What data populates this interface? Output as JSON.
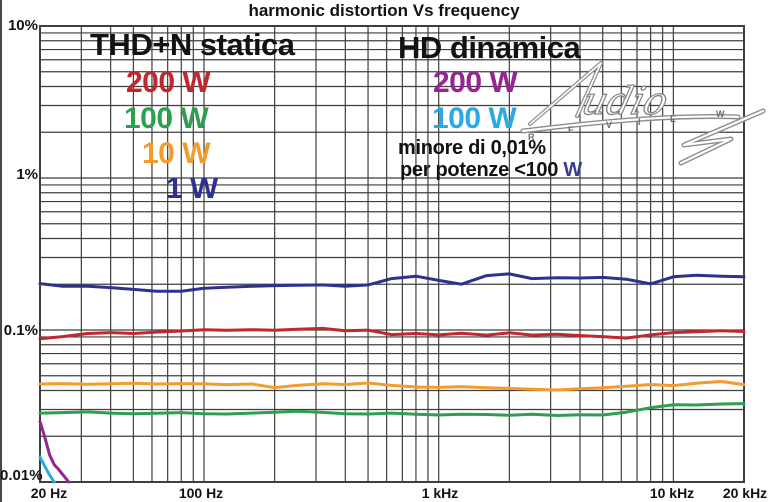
{
  "title": "harmonic distortion Vs frequency",
  "legend_left": {
    "title": "THD+N statica",
    "entries": [
      {
        "label": "200 W",
        "color": "#c1272d"
      },
      {
        "label": "100 W",
        "color": "#2f9e50"
      },
      {
        "label": "10 W",
        "color": "#f39c2c"
      },
      {
        "label": "1 W",
        "color": "#2e3192"
      }
    ]
  },
  "legend_right": {
    "title": "HD dinamica",
    "entries": [
      {
        "label": "200 W",
        "color": "#93278f"
      },
      {
        "label": "100 W",
        "color": "#29abe2"
      }
    ],
    "note_line1": "minore di 0,01%",
    "note_line2_text": "per potenze <100",
    "note_line2_suffix": "W",
    "note_suffix_color": "#3b3a9a",
    "note_color": "#121212"
  },
  "logo": {
    "word": "udio",
    "sub_letters": [
      "R",
      "E",
      "V",
      "I",
      "E",
      "W"
    ]
  },
  "chart_data": {
    "type": "line",
    "title": "harmonic distortion Vs frequency",
    "xlabel": "",
    "ylabel": "",
    "x_unit": "Hz",
    "y_unit": "%",
    "x_scale": "log",
    "y_scale": "log",
    "xlim": [
      20,
      20000
    ],
    "ylim": [
      0.01,
      10
    ],
    "grid": "log major+minor, dark gray, on",
    "legend_position": "inside-top",
    "grid_color": "#3f3f3f",
    "x_ticks": [
      {
        "label": "20 Hz",
        "hz": 20
      },
      {
        "label": "100 Hz",
        "hz": 100
      },
      {
        "label": "1 kHz",
        "hz": 1000
      },
      {
        "label": "10 kHz",
        "hz": 10000
      },
      {
        "label": "20 kHz",
        "hz": 20000
      }
    ],
    "y_ticks": [
      {
        "label": "10%",
        "pct": 10
      },
      {
        "label": "1%",
        "pct": 1
      },
      {
        "label": "0.1%",
        "pct": 0.1
      },
      {
        "label": "0.01%",
        "pct": 0.01
      }
    ],
    "series": [
      {
        "name": "THD+N statica 200 W",
        "color": "#c1272d",
        "x": [
          20,
          25,
          32,
          40,
          50,
          63,
          80,
          100,
          125,
          160,
          200,
          250,
          320,
          400,
          500,
          630,
          800,
          1000,
          1250,
          1600,
          2000,
          2500,
          3200,
          4000,
          5000,
          6300,
          8000,
          10000,
          12500,
          16000,
          20000
        ],
        "y": [
          0.0875,
          0.0905,
          0.0948,
          0.0962,
          0.0948,
          0.0968,
          0.0985,
          0.1005,
          0.0995,
          0.1005,
          0.0995,
          0.101,
          0.1025,
          0.0988,
          0.0998,
          0.0932,
          0.0948,
          0.0928,
          0.0952,
          0.0925,
          0.0958,
          0.0925,
          0.0938,
          0.0918,
          0.0905,
          0.0885,
          0.0928,
          0.0962,
          0.0975,
          0.0988,
          0.0978
        ]
      },
      {
        "name": "THD+N statica 100 W",
        "color": "#2f9e50",
        "x": [
          20,
          25,
          32,
          40,
          50,
          63,
          80,
          100,
          125,
          160,
          200,
          250,
          320,
          400,
          500,
          630,
          800,
          1000,
          1250,
          1600,
          2000,
          2500,
          3200,
          4000,
          5000,
          6300,
          8000,
          10000,
          12500,
          16000,
          20000
        ],
        "y": [
          0.0284,
          0.0286,
          0.0289,
          0.0284,
          0.0281,
          0.0283,
          0.0286,
          0.0281,
          0.028,
          0.0284,
          0.0288,
          0.0292,
          0.0287,
          0.0281,
          0.028,
          0.0284,
          0.0279,
          0.0276,
          0.0279,
          0.0278,
          0.0275,
          0.0279,
          0.0274,
          0.0277,
          0.0276,
          0.0288,
          0.0308,
          0.0322,
          0.0321,
          0.0326,
          0.0328
        ]
      },
      {
        "name": "THD+N statica 10 W",
        "color": "#f39c2c",
        "x": [
          20,
          25,
          32,
          40,
          50,
          63,
          80,
          100,
          125,
          160,
          200,
          250,
          320,
          400,
          500,
          630,
          800,
          1000,
          1250,
          1600,
          2000,
          2500,
          3200,
          4000,
          5000,
          6300,
          8000,
          10000,
          12500,
          16000,
          20000
        ],
        "y": [
          0.0441,
          0.0444,
          0.0439,
          0.0443,
          0.0446,
          0.0441,
          0.0444,
          0.0442,
          0.0437,
          0.0441,
          0.0418,
          0.0432,
          0.0443,
          0.0438,
          0.0448,
          0.0432,
          0.0422,
          0.0419,
          0.0424,
          0.0417,
          0.0413,
          0.0408,
          0.0403,
          0.0411,
          0.0417,
          0.0426,
          0.0438,
          0.0431,
          0.0446,
          0.0458,
          0.0437
        ]
      },
      {
        "name": "THD+N statica 1 W",
        "color": "#2e3192",
        "x": [
          20,
          25,
          32,
          40,
          50,
          63,
          80,
          100,
          125,
          160,
          200,
          250,
          320,
          400,
          500,
          630,
          800,
          1000,
          1250,
          1600,
          2000,
          2500,
          3200,
          4000,
          5000,
          6300,
          8000,
          10000,
          12500,
          16000,
          20000
        ],
        "y": [
          0.202,
          0.194,
          0.194,
          0.19,
          0.185,
          0.18,
          0.18,
          0.188,
          0.191,
          0.194,
          0.196,
          0.197,
          0.198,
          0.194,
          0.198,
          0.218,
          0.226,
          0.212,
          0.2,
          0.228,
          0.234,
          0.218,
          0.221,
          0.22,
          0.222,
          0.216,
          0.201,
          0.224,
          0.229,
          0.226,
          0.224
        ]
      },
      {
        "name": "HD dinamica 200 W",
        "color": "#93278f",
        "x": [
          20,
          21,
          22,
          23,
          24,
          25,
          26,
          26.5
        ],
        "y": [
          0.025,
          0.0195,
          0.015,
          0.013,
          0.0121,
          0.0112,
          0.0104,
          0.01
        ]
      },
      {
        "name": "HD dinamica 100 W",
        "color": "#29abe2",
        "x": [
          20,
          21,
          22,
          23
        ],
        "y": [
          0.0146,
          0.0126,
          0.0111,
          0.01
        ]
      }
    ]
  }
}
